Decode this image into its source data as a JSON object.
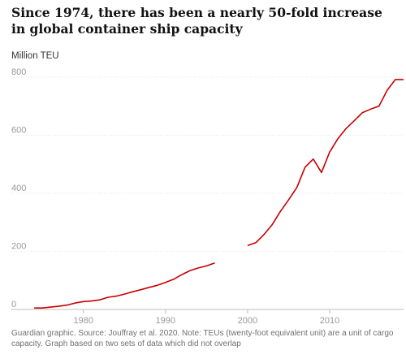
{
  "page": {
    "title": "Since 1974, there has been a nearly 50-fold increase in global container ship capacity",
    "footnote": "Guardian graphic. Source: Jouffray et al. 2020. Note: TEUs (twenty-foot equivalent unit) are a unit of cargo capacity. Graph based on two sets of data which did not overlap"
  },
  "chart_data": {
    "type": "line",
    "title": "Since 1974, there has been a nearly 50-fold increase in global container ship capacity",
    "ylabel": "Million TEU",
    "xlabel": "",
    "ylim": [
      0,
      800
    ],
    "xlim": [
      1973.5,
      2019
    ],
    "yticks": [
      0,
      200,
      400,
      600,
      800
    ],
    "xticks": [
      1980,
      1990,
      2000,
      2010
    ],
    "grid": "horizontal",
    "legend": "none",
    "color": "#c70000",
    "series": [
      {
        "values": [
          {
            "x": 1974,
            "y": 5
          },
          {
            "x": 1975,
            "y": 5
          },
          {
            "x": 1976,
            "y": 8
          },
          {
            "x": 1977,
            "y": 11
          },
          {
            "x": 1978,
            "y": 15
          },
          {
            "x": 1979,
            "y": 22
          },
          {
            "x": 1980,
            "y": 27
          },
          {
            "x": 1981,
            "y": 29
          },
          {
            "x": 1982,
            "y": 33
          },
          {
            "x": 1983,
            "y": 42
          },
          {
            "x": 1984,
            "y": 46
          },
          {
            "x": 1985,
            "y": 53
          },
          {
            "x": 1986,
            "y": 61
          },
          {
            "x": 1987,
            "y": 68
          },
          {
            "x": 1988,
            "y": 76
          },
          {
            "x": 1989,
            "y": 83
          },
          {
            "x": 1990,
            "y": 93
          },
          {
            "x": 1991,
            "y": 104
          },
          {
            "x": 1992,
            "y": 120
          },
          {
            "x": 1993,
            "y": 134
          },
          {
            "x": 1994,
            "y": 143
          },
          {
            "x": 1995,
            "y": 150
          },
          {
            "x": 1996,
            "y": 160
          }
        ]
      },
      {
        "values": [
          {
            "x": 2000,
            "y": 220
          },
          {
            "x": 2001,
            "y": 230
          },
          {
            "x": 2002,
            "y": 258
          },
          {
            "x": 2003,
            "y": 292
          },
          {
            "x": 2004,
            "y": 338
          },
          {
            "x": 2005,
            "y": 378
          },
          {
            "x": 2006,
            "y": 420
          },
          {
            "x": 2007,
            "y": 490
          },
          {
            "x": 2008,
            "y": 518
          },
          {
            "x": 2009,
            "y": 472
          },
          {
            "x": 2010,
            "y": 542
          },
          {
            "x": 2011,
            "y": 588
          },
          {
            "x": 2012,
            "y": 623
          },
          {
            "x": 2013,
            "y": 650
          },
          {
            "x": 2014,
            "y": 678
          },
          {
            "x": 2015,
            "y": 690
          },
          {
            "x": 2016,
            "y": 700
          },
          {
            "x": 2017,
            "y": 755
          },
          {
            "x": 2018,
            "y": 792
          },
          {
            "x": 2019,
            "y": 792
          }
        ]
      }
    ]
  }
}
